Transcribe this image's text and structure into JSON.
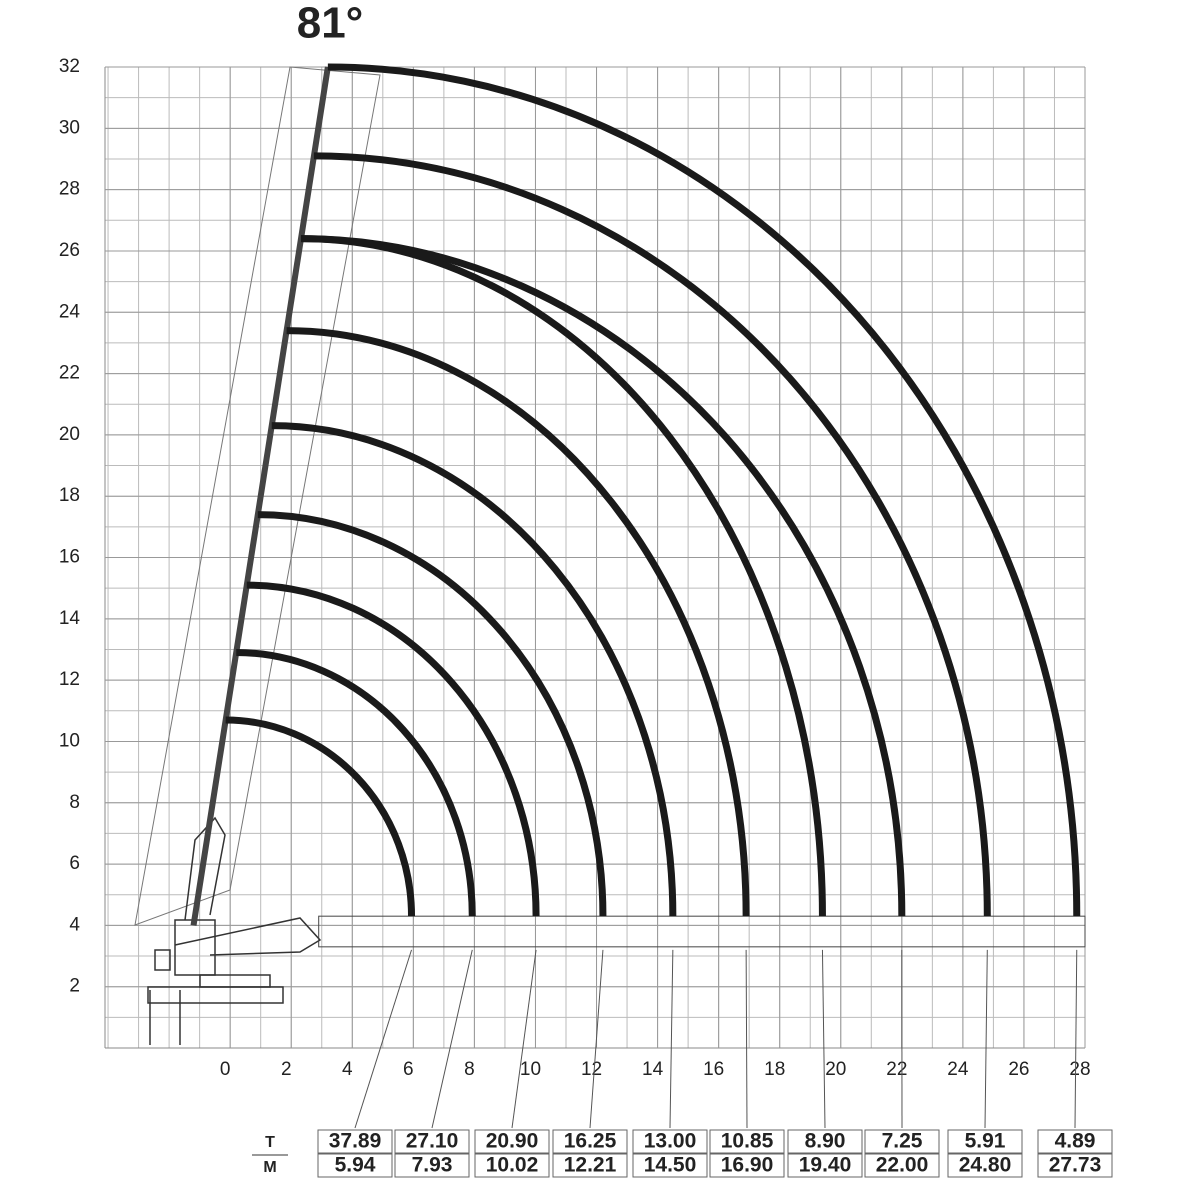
{
  "chart_data": {
    "type": "load-chart",
    "title": "81°",
    "xlim": [
      -4.1,
      28
    ],
    "ylim": [
      0,
      32
    ],
    "xticks": [
      0,
      2,
      4,
      6,
      8,
      10,
      12,
      14,
      16,
      18,
      20,
      22,
      24,
      26,
      28
    ],
    "yticks": [
      2,
      4,
      6,
      8,
      10,
      12,
      14,
      16,
      18,
      20,
      22,
      24,
      26,
      28,
      30,
      32
    ],
    "grid": true,
    "color": "#1a1a1a",
    "arc_tops": [
      10.7,
      12.9,
      15.1,
      17.4,
      20.3,
      23.4,
      26.4,
      26.4,
      29.1,
      32
    ],
    "series": [
      {
        "name": "T",
        "values": [
          37.89,
          27.1,
          20.9,
          16.25,
          13,
          10.85,
          8.9,
          7.25,
          5.91,
          4.89
        ],
        "value_labels": [
          "37.89",
          "27.10",
          "20.90",
          "16.25",
          "13.00",
          "10.85",
          "8.90",
          "7.25",
          "5.91",
          "4.89"
        ]
      },
      {
        "name": "M",
        "values": [
          5.94,
          7.93,
          10.02,
          12.21,
          14.5,
          16.9,
          19.4,
          22,
          24.8,
          27.73
        ],
        "value_labels": [
          "5.94",
          "7.93",
          "10.02",
          "12.21",
          "14.50",
          "16.90",
          "19.40",
          "22.00",
          "24.80",
          "27.73"
        ]
      }
    ]
  }
}
